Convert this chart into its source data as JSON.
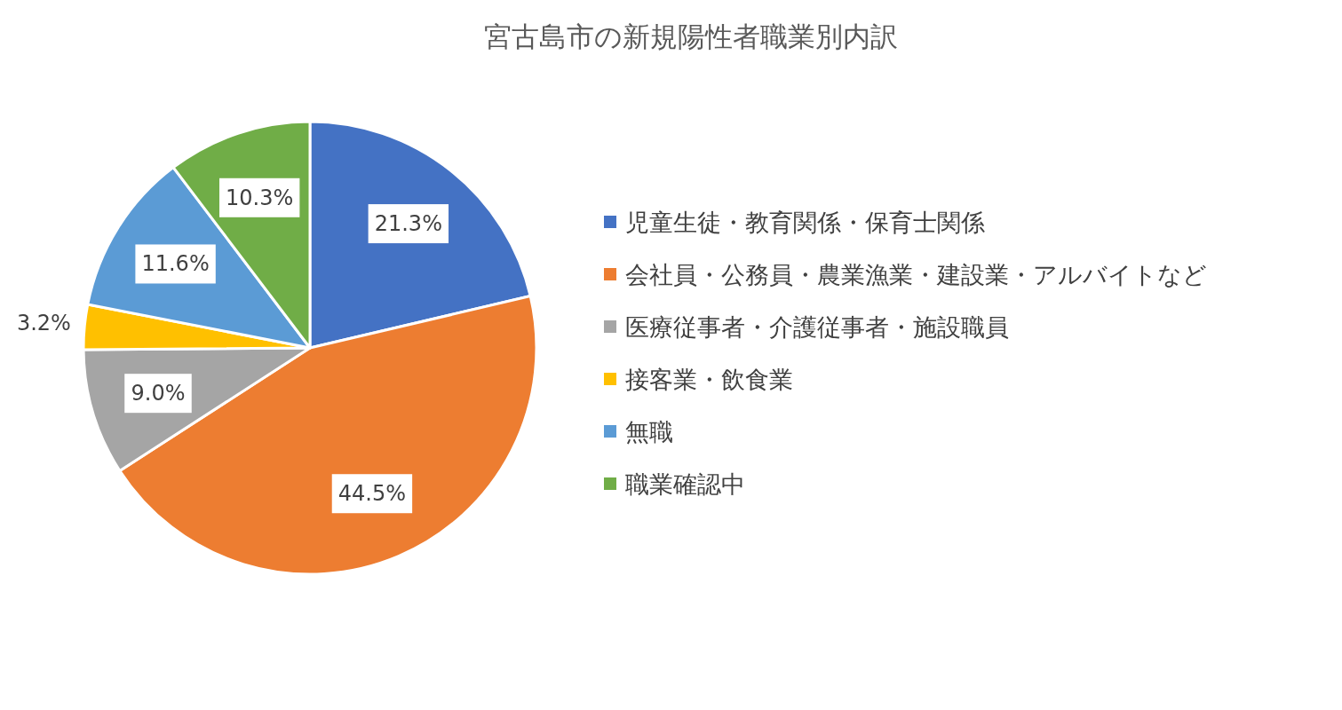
{
  "chart_data": {
    "type": "pie",
    "title": "宮古島市の新規陽性者職業別内訳",
    "categories": [
      "児童生徒・教育関係・保育士関係",
      "会社員・公務員・農業漁業・建設業・アルバイトなど",
      "医療従事者・介護従事者・施設職員",
      "接客業・飲食業",
      "無職",
      "職業確認中"
    ],
    "values": [
      21.3,
      44.5,
      9.0,
      3.2,
      11.6,
      10.3
    ],
    "value_labels": [
      "21.3%",
      "44.5%",
      "9.0%",
      "3.2%",
      "11.6%",
      "10.3%"
    ],
    "colors": [
      "#4472c4",
      "#ed7d31",
      "#a5a5a5",
      "#ffc000",
      "#5b9bd5",
      "#70ad47"
    ],
    "legend": "right"
  }
}
